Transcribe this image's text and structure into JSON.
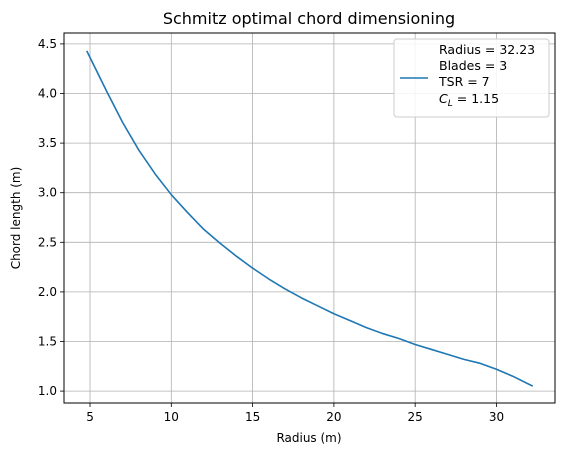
{
  "chart_data": {
    "type": "line",
    "title": "Schmitz optimal chord dimensioning",
    "xlabel": "Radius (m)",
    "ylabel": "Chord length (m)",
    "xlim": [
      3.4,
      33.6
    ],
    "ylim": [
      0.88,
      4.61
    ],
    "xticks": [
      5,
      10,
      15,
      20,
      25,
      30
    ],
    "yticks": [
      1.0,
      1.5,
      2.0,
      2.5,
      3.0,
      3.5,
      4.0,
      4.5
    ],
    "xtick_labels": [
      "5",
      "10",
      "15",
      "20",
      "25",
      "30"
    ],
    "ytick_labels": [
      "1.0",
      "1.5",
      "2.0",
      "2.5",
      "3.0",
      "3.5",
      "4.0",
      "4.5"
    ],
    "grid": true,
    "legend_position": "top-right",
    "legend": {
      "lines": [
        "Radius = 32.23",
        "Blades = 3",
        "TSR = 7",
        "= 1.15"
      ],
      "cl_symbol": "C",
      "cl_subscript": "L"
    },
    "series": [
      {
        "color": "#1f77b4",
        "x": [
          4.8,
          6.0,
          7.0,
          8.0,
          9.0,
          10.0,
          11.0,
          12.0,
          13.0,
          14.0,
          15.0,
          16.0,
          17.0,
          18.0,
          19.0,
          20.0,
          21.0,
          22.0,
          23.0,
          24.0,
          25.0,
          26.0,
          27.0,
          28.0,
          29.0,
          30.0,
          31.0,
          32.23
        ],
        "y": [
          4.43,
          4.03,
          3.71,
          3.43,
          3.19,
          2.98,
          2.8,
          2.63,
          2.49,
          2.36,
          2.24,
          2.13,
          2.03,
          1.94,
          1.86,
          1.78,
          1.71,
          1.64,
          1.58,
          1.53,
          1.47,
          1.42,
          1.37,
          1.32,
          1.28,
          1.22,
          1.15,
          1.05
        ]
      }
    ]
  }
}
